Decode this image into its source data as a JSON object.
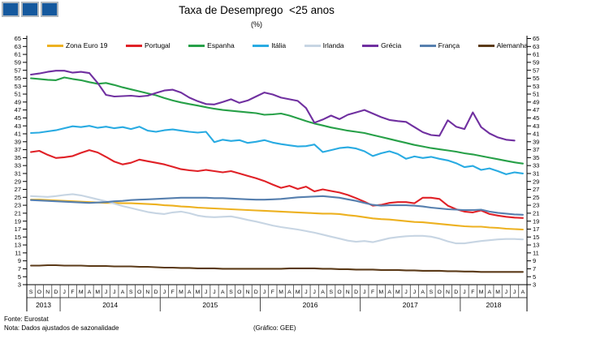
{
  "header": {
    "title": "Taxa de Desemprego  <25 anos",
    "subtitle": "(%)"
  },
  "logo": {
    "squares": 3,
    "color": "#15599E",
    "border_color": "#AEB6BD"
  },
  "footer": {
    "source": "Fonte: Eurostat",
    "note": "Nota: Dados ajustados de sazonalidade",
    "credit": "(Gráfico: GEE)"
  },
  "chart_data": {
    "type": "line",
    "title": "Taxa de Desemprego <25 anos",
    "subtitle": "(%)",
    "ylim": [
      3,
      65
    ],
    "ytick_step": 2,
    "grid": false,
    "legend_position": "top",
    "axis_color": "#000000",
    "month_labels": [
      "S",
      "O",
      "N",
      "D",
      "J",
      "F",
      "M",
      "A",
      "M",
      "J",
      "J",
      "A",
      "S",
      "O",
      "N",
      "D",
      "J",
      "F",
      "M",
      "A",
      "M",
      "J",
      "J",
      "A",
      "S",
      "O",
      "N",
      "D",
      "J",
      "F",
      "M",
      "A",
      "M",
      "J",
      "J",
      "A",
      "S",
      "O",
      "N",
      "D",
      "J",
      "F",
      "M",
      "A",
      "M",
      "J",
      "J",
      "A",
      "S",
      "O",
      "N",
      "D",
      "J",
      "F",
      "M",
      "A",
      "M",
      "J",
      "J",
      "A"
    ],
    "year_groups": [
      {
        "label": "2013",
        "span": 4
      },
      {
        "label": "2014",
        "span": 12
      },
      {
        "label": "2015",
        "span": 12
      },
      {
        "label": "2016",
        "span": 12
      },
      {
        "label": "2017",
        "span": 12
      },
      {
        "label": "2018",
        "span": 8
      }
    ],
    "series": [
      {
        "name": "Zona Euro 19",
        "key": "zona-euro-19",
        "color": "#EDB120",
        "values": [
          24.4,
          24.4,
          24.3,
          24.2,
          24.1,
          24.0,
          23.9,
          23.8,
          23.7,
          23.6,
          23.6,
          23.5,
          23.5,
          23.4,
          23.3,
          23.2,
          23.0,
          22.9,
          22.7,
          22.6,
          22.4,
          22.3,
          22.2,
          22.1,
          22.0,
          21.9,
          21.8,
          21.7,
          21.6,
          21.5,
          21.4,
          21.3,
          21.2,
          21.1,
          21.0,
          20.9,
          20.9,
          20.8,
          20.5,
          20.3,
          20.0,
          19.7,
          19.5,
          19.4,
          19.2,
          19.0,
          18.8,
          18.7,
          18.5,
          18.3,
          18.1,
          17.9,
          17.7,
          17.6,
          17.6,
          17.4,
          17.3,
          17.1,
          17.0,
          16.9
        ]
      },
      {
        "name": "Portugal",
        "key": "portugal",
        "color": "#E02127",
        "values": [
          36.4,
          36.7,
          35.7,
          34.9,
          35.1,
          35.4,
          36.2,
          36.9,
          36.3,
          35.2,
          34.0,
          33.3,
          33.7,
          34.5,
          34.1,
          33.7,
          33.3,
          32.7,
          32.1,
          31.8,
          31.6,
          31.9,
          31.6,
          31.3,
          31.6,
          31.0,
          30.4,
          29.8,
          29.1,
          28.2,
          27.4,
          27.9,
          27.1,
          27.7,
          26.5,
          27.0,
          26.6,
          26.2,
          25.6,
          24.8,
          23.9,
          22.9,
          23.1,
          23.6,
          23.8,
          23.8,
          23.5,
          24.9,
          24.9,
          24.6,
          22.9,
          22.0,
          21.4,
          21.2,
          21.7,
          20.8,
          20.4,
          20.1,
          19.9,
          19.8
        ]
      },
      {
        "name": "Espanha",
        "key": "espanha",
        "color": "#27A048",
        "values": [
          55.0,
          54.8,
          54.6,
          54.5,
          55.2,
          54.8,
          54.5,
          54.0,
          53.6,
          53.8,
          53.3,
          52.7,
          52.2,
          51.7,
          51.2,
          50.7,
          50.0,
          49.4,
          48.9,
          48.5,
          48.1,
          47.7,
          47.3,
          47.0,
          46.8,
          46.6,
          46.4,
          46.2,
          45.8,
          45.9,
          46.1,
          45.6,
          44.9,
          44.2,
          43.6,
          43.1,
          42.6,
          42.2,
          41.8,
          41.5,
          41.2,
          40.7,
          40.2,
          39.7,
          39.2,
          38.7,
          38.2,
          37.8,
          37.4,
          37.1,
          36.8,
          36.5,
          36.1,
          35.8,
          35.4,
          35.0,
          34.6,
          34.2,
          33.8,
          33.5
        ]
      },
      {
        "name": "Itália",
        "key": "italia",
        "color": "#29ABE2",
        "values": [
          41.2,
          41.3,
          41.6,
          41.9,
          42.4,
          42.9,
          42.7,
          43.0,
          42.5,
          42.8,
          42.4,
          42.7,
          42.2,
          42.8,
          41.8,
          41.5,
          41.9,
          42.1,
          41.8,
          41.5,
          41.3,
          41.5,
          38.9,
          39.5,
          39.2,
          39.4,
          38.7,
          39.0,
          39.4,
          38.8,
          38.4,
          38.1,
          37.8,
          37.9,
          38.3,
          36.4,
          36.9,
          37.4,
          37.6,
          37.3,
          36.6,
          35.4,
          36.1,
          36.6,
          35.9,
          34.7,
          35.3,
          34.9,
          35.2,
          34.7,
          34.3,
          33.6,
          32.6,
          32.9,
          31.9,
          32.3,
          31.6,
          30.8,
          31.3,
          31.0
        ]
      },
      {
        "name": "Irlanda",
        "key": "irlanda",
        "color": "#C7D5E3",
        "values": [
          25.3,
          25.2,
          25.1,
          25.3,
          25.6,
          25.8,
          25.5,
          25.0,
          24.5,
          24.0,
          23.4,
          22.8,
          22.3,
          21.8,
          21.3,
          21.0,
          20.8,
          21.2,
          21.4,
          21.0,
          20.4,
          20.1,
          20.0,
          20.1,
          20.2,
          19.8,
          19.3,
          18.9,
          18.4,
          17.9,
          17.5,
          17.2,
          16.9,
          16.5,
          16.1,
          15.6,
          15.1,
          14.6,
          14.1,
          13.8,
          14.0,
          13.7,
          14.2,
          14.7,
          15.0,
          15.2,
          15.3,
          15.3,
          15.1,
          14.6,
          13.9,
          13.4,
          13.4,
          13.7,
          14.0,
          14.2,
          14.4,
          14.5,
          14.5,
          14.4
        ]
      },
      {
        "name": "Grécia",
        "key": "grecia",
        "color": "#7030A0",
        "values": [
          55.9,
          56.2,
          56.6,
          56.9,
          56.9,
          56.4,
          56.6,
          56.3,
          53.8,
          50.8,
          50.4,
          50.5,
          50.6,
          50.4,
          50.6,
          51.3,
          51.9,
          52.1,
          51.4,
          50.1,
          49.2,
          48.5,
          48.4,
          49.0,
          49.7,
          48.8,
          49.4,
          50.4,
          51.4,
          50.9,
          50.1,
          49.7,
          49.3,
          47.5,
          43.8,
          44.6,
          45.6,
          44.7,
          45.8,
          46.4,
          47.0,
          46.1,
          45.2,
          44.5,
          44.2,
          44.0,
          42.7,
          41.4,
          40.7,
          40.5,
          44.4,
          42.8,
          42.2,
          46.4,
          42.7,
          41.1,
          40.1,
          39.5,
          39.3,
          null
        ]
      },
      {
        "name": "França",
        "key": "franca",
        "color": "#567FAE",
        "values": [
          24.3,
          24.2,
          24.1,
          24.0,
          23.9,
          23.8,
          23.7,
          23.6,
          23.7,
          23.8,
          24.0,
          24.1,
          24.3,
          24.4,
          24.5,
          24.6,
          24.7,
          24.8,
          24.9,
          24.9,
          24.9,
          24.9,
          24.8,
          24.8,
          24.7,
          24.6,
          24.5,
          24.4,
          24.4,
          24.5,
          24.6,
          24.8,
          25.0,
          25.1,
          25.2,
          25.3,
          25.1,
          24.9,
          24.5,
          24.1,
          23.6,
          23.1,
          22.9,
          23.0,
          23.0,
          23.0,
          22.9,
          22.7,
          22.4,
          22.2,
          22.0,
          21.9,
          21.8,
          21.8,
          21.9,
          21.4,
          21.1,
          20.9,
          20.7,
          20.6
        ]
      },
      {
        "name": "Alemanha",
        "key": "alemanha",
        "color": "#5B3A18",
        "values": [
          7.8,
          7.8,
          7.9,
          7.9,
          7.8,
          7.8,
          7.8,
          7.7,
          7.7,
          7.7,
          7.6,
          7.6,
          7.6,
          7.5,
          7.5,
          7.4,
          7.3,
          7.3,
          7.2,
          7.2,
          7.1,
          7.1,
          7.1,
          7.0,
          7.0,
          7.0,
          7.0,
          7.0,
          7.0,
          7.0,
          7.0,
          7.1,
          7.1,
          7.1,
          7.1,
          7.0,
          7.0,
          6.9,
          6.9,
          6.8,
          6.8,
          6.8,
          6.7,
          6.7,
          6.7,
          6.6,
          6.6,
          6.5,
          6.5,
          6.5,
          6.4,
          6.4,
          6.3,
          6.3,
          6.2,
          6.2,
          6.2,
          6.2,
          6.2,
          6.2
        ]
      }
    ]
  }
}
